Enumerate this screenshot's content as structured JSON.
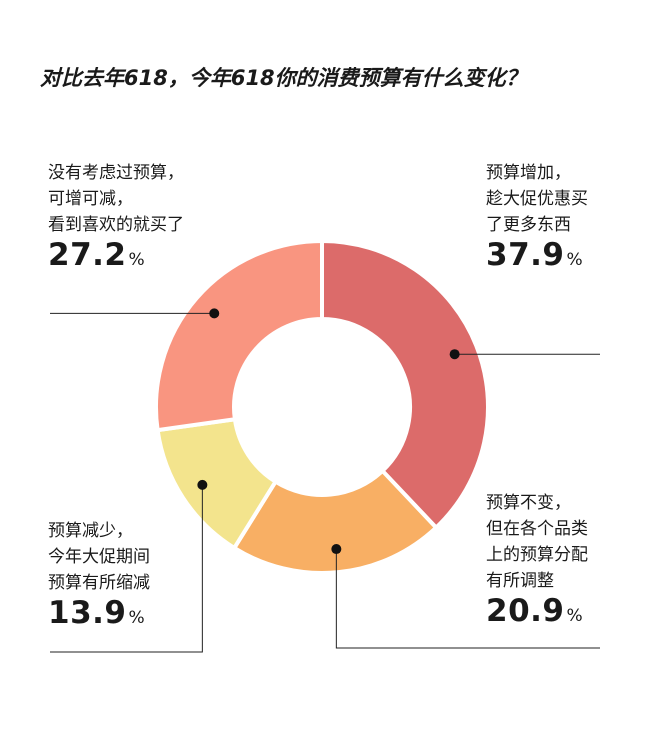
{
  "title": "对比去年618，今年618你的消费预算有什么变化？",
  "chart_data": {
    "type": "pie",
    "donut": true,
    "title": "对比去年618，今年618你的消费预算有什么变化？",
    "slices": [
      {
        "label": [
          "预算增加，",
          "趁大促优惠买",
          "了更多东西"
        ],
        "value": 37.9,
        "value_text": "37.9",
        "color": "#DC6B6A"
      },
      {
        "label": [
          "预算不变，",
          "但在各个品类",
          "上的预算分配",
          "有所调整"
        ],
        "value": 20.9,
        "value_text": "20.9",
        "color": "#F8AF64"
      },
      {
        "label": [
          "预算减少，",
          "今年大促期间",
          "预算有所缩减"
        ],
        "value": 13.9,
        "value_text": "13.9",
        "color": "#F3E48D"
      },
      {
        "label": [
          "没有考虑过预算，",
          "可增可减，",
          "看到喜欢的就买了"
        ],
        "value": 27.2,
        "value_text": "27.2",
        "color": "#F99580"
      }
    ],
    "unit": "%"
  }
}
